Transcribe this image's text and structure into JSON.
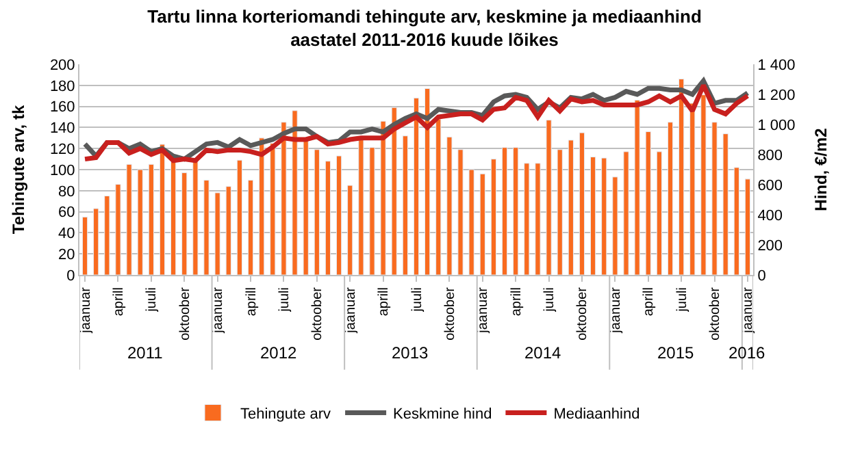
{
  "chart_data": {
    "type": "bar",
    "title": "Tartu linna korteriomandi tehingute arv, keskmine ja mediaanhind\naastatel 2011-2016 kuude lõikes",
    "ylabel": "Tehingute arv, tk",
    "y2label": "Hind, €/m2",
    "categories": [
      "jaanuar",
      null,
      null,
      "aprill",
      null,
      null,
      "juuli",
      null,
      null,
      "oktoober",
      null,
      null,
      "jaanuar",
      null,
      null,
      "aprill",
      null,
      null,
      "juuli",
      null,
      null,
      "oktoober",
      null,
      null,
      "jaanuar",
      null,
      null,
      "aprill",
      null,
      null,
      "juuli",
      null,
      null,
      "oktoober",
      null,
      null,
      "jaanuar",
      null,
      null,
      "aprill",
      null,
      null,
      "juuli",
      null,
      null,
      "oktoober",
      null,
      null,
      "jaanuar",
      null,
      null,
      "aprill",
      null,
      null,
      "juuli",
      null,
      null,
      "oktoober",
      null,
      null,
      "jaanuar"
    ],
    "annotations": [
      "2011",
      "2012",
      "2013",
      "2014",
      "2015",
      "2016"
    ],
    "series": [
      {
        "name": "Tehingute arv",
        "color": "#f96b1f",
        "values": [
          55,
          63,
          75,
          86,
          105,
          100,
          105,
          124,
          110,
          97,
          110,
          90,
          78,
          84,
          109,
          90,
          130,
          125,
          145,
          156,
          128,
          119,
          108,
          113,
          85,
          130,
          121,
          146,
          159,
          132,
          168,
          177,
          148,
          131,
          119,
          100,
          96,
          110,
          121,
          121,
          106,
          106,
          147,
          119,
          128,
          135,
          112,
          111,
          93,
          117,
          166,
          136,
          117,
          145,
          186,
          163,
          171,
          145,
          134,
          102,
          91
        ]
      },
      {
        "name": "Keskmine hind",
        "type": "line",
        "axis": "y2",
        "color": "#595959",
        "values": [
          870,
          790,
          880,
          880,
          840,
          870,
          820,
          840,
          790,
          770,
          820,
          870,
          880,
          850,
          900,
          860,
          880,
          900,
          940,
          970,
          970,
          920,
          880,
          890,
          950,
          950,
          970,
          950,
          1000,
          1040,
          1070,
          1040,
          1100,
          1090,
          1080,
          1080,
          1060,
          1150,
          1190,
          1200,
          1180,
          1100,
          1150,
          1110,
          1180,
          1170,
          1200,
          1160,
          1180,
          1220,
          1200,
          1240,
          1240,
          1230,
          1230,
          1200,
          1290,
          1140,
          1160,
          1160,
          1210
        ]
      },
      {
        "name": "Mediaanhind",
        "type": "line",
        "axis": "y2",
        "color": "#c8201e",
        "values": [
          770,
          780,
          880,
          880,
          810,
          840,
          800,
          830,
          760,
          770,
          760,
          830,
          820,
          830,
          830,
          820,
          800,
          850,
          910,
          900,
          900,
          920,
          870,
          880,
          900,
          910,
          910,
          910,
          970,
          1010,
          1050,
          980,
          1050,
          1060,
          1070,
          1070,
          1030,
          1100,
          1110,
          1180,
          1160,
          1050,
          1160,
          1090,
          1170,
          1150,
          1160,
          1130,
          1130,
          1130,
          1130,
          1150,
          1190,
          1150,
          1190,
          1090,
          1260,
          1100,
          1070,
          1140,
          1190
        ]
      }
    ],
    "ylim": [
      0,
      200
    ],
    "yticks": [
      0,
      20,
      40,
      60,
      80,
      100,
      120,
      140,
      160,
      180,
      200
    ],
    "y2lim": [
      0,
      1400
    ],
    "y2ticks": [
      0,
      200,
      400,
      600,
      800,
      {
        "value": 1000,
        "label": "1 000"
      },
      {
        "value": 1200,
        "label": "1 200"
      },
      {
        "value": 1400,
        "label": "1 400"
      }
    ],
    "grid": "y",
    "legend": "bottom",
    "marker": "none",
    "line_style": "solid"
  }
}
